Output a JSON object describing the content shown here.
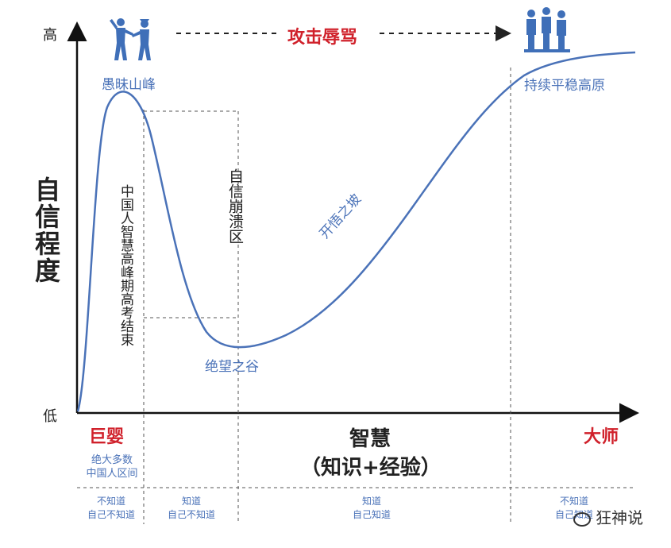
{
  "axes": {
    "y_label": "自信程度",
    "y_high": "高",
    "y_low": "低",
    "x_label_main": "智慧",
    "x_label_sub": "（知识+经验）",
    "x_left": "巨婴",
    "x_right": "大师"
  },
  "stages": {
    "peak": "愚昧山峰",
    "plateau": "持续平稳高原",
    "valley": "绝望之谷",
    "slope": "开悟之坡",
    "collapse_zone": "自信崩溃区",
    "gaokao_note": "中国人智慧高峰期高考结束"
  },
  "top_banner": "攻击辱骂",
  "bottom_band": {
    "majority": [
      "绝大多数",
      "中国人区间"
    ],
    "columns": [
      [
        "不知道",
        "自己不知道"
      ],
      [
        "知道",
        "自己不知道"
      ],
      [
        "知道",
        "自己知道"
      ],
      [
        "不知道",
        "自己知道"
      ]
    ]
  },
  "watermark": "狂神说",
  "icons": {
    "left": "arguing-people-icon",
    "right": "standing-crowd-icon"
  },
  "colors": {
    "curve": "#4a72b8",
    "accent_red": "#d0212b",
    "axis": "#111111",
    "dashed": "#555555"
  }
}
